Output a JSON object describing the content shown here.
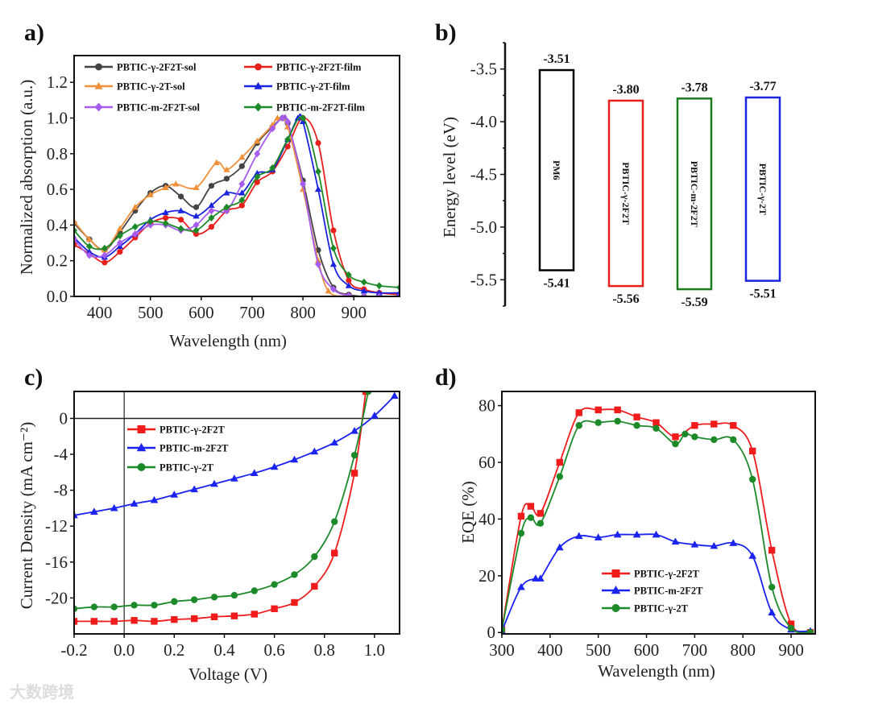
{
  "watermark": "大数跨境",
  "chart_data": [
    {
      "panel": "a)",
      "type": "line",
      "xlabel": "Wavelength (nm)",
      "ylabel": "Normalized absorption (a.u.)",
      "xlim": [
        350,
        990
      ],
      "ylim": [
        0,
        1.35
      ],
      "xticks": [
        {
          "v": 400,
          "t": "400"
        },
        {
          "v": 500,
          "t": "500"
        },
        {
          "v": 600,
          "t": "600"
        },
        {
          "v": 700,
          "t": "700"
        },
        {
          "v": 800,
          "t": "800"
        },
        {
          "v": 900,
          "t": "900"
        }
      ],
      "yticks": [
        {
          "v": 0,
          "t": "0.0"
        },
        {
          "v": 0.2,
          "t": "0.2"
        },
        {
          "v": 0.4,
          "t": "0.4"
        },
        {
          "v": 0.6,
          "t": "0.6"
        },
        {
          "v": 0.8,
          "t": "0.8"
        },
        {
          "v": 1.0,
          "t": "1.0"
        },
        {
          "v": 1.2,
          "t": "1.2"
        }
      ],
      "legend": "top-left, two columns",
      "series": [
        {
          "name": "PBTIC-γ-2F2T-sol",
          "color": "#444444",
          "marker": "circle",
          "x": [
            350,
            380,
            410,
            440,
            470,
            500,
            530,
            560,
            590,
            620,
            650,
            680,
            710,
            740,
            760,
            770,
            800,
            830,
            860,
            890,
            920,
            950,
            990
          ],
          "y": [
            0.41,
            0.32,
            0.26,
            0.36,
            0.48,
            0.58,
            0.62,
            0.56,
            0.5,
            0.62,
            0.66,
            0.73,
            0.86,
            0.95,
            1.0,
            0.97,
            0.65,
            0.26,
            0.05,
            0.01,
            0,
            0,
            0
          ]
        },
        {
          "name": "PBTIC-γ-2F2T-film",
          "color": "#e8201c",
          "marker": "circle",
          "x": [
            350,
            380,
            410,
            440,
            470,
            500,
            530,
            560,
            590,
            620,
            650,
            680,
            710,
            740,
            770,
            800,
            830,
            860,
            890,
            920,
            950,
            990
          ],
          "y": [
            0.29,
            0.24,
            0.19,
            0.25,
            0.33,
            0.41,
            0.44,
            0.43,
            0.35,
            0.39,
            0.48,
            0.51,
            0.64,
            0.7,
            0.84,
            1.0,
            0.86,
            0.37,
            0.09,
            0.04,
            0.02,
            0.01
          ]
        },
        {
          "name": "PBTIC-γ-2T-sol",
          "color": "#f0913a",
          "marker": "triangle",
          "x": [
            350,
            380,
            410,
            440,
            470,
            500,
            530,
            550,
            590,
            630,
            650,
            680,
            710,
            740,
            750,
            770,
            800,
            830,
            850,
            880,
            920,
            990
          ],
          "y": [
            0.42,
            0.32,
            0.26,
            0.38,
            0.5,
            0.57,
            0.61,
            0.63,
            0.61,
            0.75,
            0.71,
            0.78,
            0.87,
            0.96,
            1.0,
            0.95,
            0.6,
            0.2,
            0.03,
            0,
            0,
            0
          ]
        },
        {
          "name": "PBTIC-γ-2T-film",
          "color": "#1a23e0",
          "marker": "triangle",
          "x": [
            350,
            380,
            410,
            440,
            470,
            500,
            530,
            560,
            590,
            620,
            650,
            680,
            710,
            740,
            770,
            790,
            800,
            830,
            860,
            890,
            920,
            950,
            990
          ],
          "y": [
            0.33,
            0.25,
            0.22,
            0.28,
            0.35,
            0.43,
            0.47,
            0.48,
            0.45,
            0.51,
            0.58,
            0.58,
            0.69,
            0.71,
            0.88,
            1.0,
            0.98,
            0.6,
            0.18,
            0.06,
            0.03,
            0.02,
            0.02
          ]
        },
        {
          "name": "PBTIC-m-2F2T-sol",
          "color": "#a65cf0",
          "marker": "diamond",
          "x": [
            350,
            380,
            410,
            440,
            470,
            500,
            530,
            560,
            590,
            620,
            650,
            680,
            710,
            740,
            760,
            770,
            800,
            830,
            860,
            890,
            920,
            950,
            990
          ],
          "y": [
            0.32,
            0.23,
            0.23,
            0.3,
            0.35,
            0.4,
            0.4,
            0.37,
            0.4,
            0.48,
            0.48,
            0.63,
            0.8,
            0.94,
            1.0,
            0.98,
            0.63,
            0.18,
            0.04,
            0.005,
            0,
            0,
            0
          ]
        },
        {
          "name": "PBTIC-m-2F2T-film",
          "color": "#1d8a2a",
          "marker": "diamond",
          "x": [
            350,
            380,
            410,
            440,
            470,
            500,
            530,
            560,
            590,
            620,
            650,
            680,
            710,
            740,
            770,
            800,
            830,
            860,
            890,
            920,
            950,
            990
          ],
          "y": [
            0.37,
            0.28,
            0.27,
            0.34,
            0.39,
            0.42,
            0.41,
            0.38,
            0.37,
            0.44,
            0.5,
            0.54,
            0.67,
            0.72,
            0.88,
            1.0,
            0.7,
            0.27,
            0.12,
            0.08,
            0.06,
            0.05
          ]
        }
      ]
    },
    {
      "panel": "b)",
      "type": "bar",
      "ylabel": "Energy level (eV)",
      "ylim": [
        -3.25,
        -5.75
      ],
      "yticks": [
        {
          "v": -3.5,
          "t": "-3.5"
        },
        {
          "v": -4.0,
          "t": "-4.0"
        },
        {
          "v": -4.5,
          "t": "-4.5"
        },
        {
          "v": -5.0,
          "t": "-5.0"
        },
        {
          "v": -5.5,
          "t": "-5.5"
        }
      ],
      "levels": [
        {
          "name": "PM6",
          "lumo": -3.51,
          "homo": -5.41,
          "lumo_label": "-3.51",
          "homo_label": "-5.41",
          "color": "#000000"
        },
        {
          "name": "PBTIC-γ-2F2T",
          "lumo": -3.8,
          "homo": -5.56,
          "lumo_label": "-3.80",
          "homo_label": "-5.56",
          "color": "#e8201c"
        },
        {
          "name": "PBTIC-m-2F2T",
          "lumo": -3.78,
          "homo": -5.59,
          "lumo_label": "-3.78",
          "homo_label": "-5.59",
          "color": "#1d7a1d"
        },
        {
          "name": "PBTIC-γ-2T",
          "lumo": -3.77,
          "homo": -5.51,
          "lumo_label": "-3.77",
          "homo_label": "-5.51",
          "color": "#1a23e0"
        }
      ]
    },
    {
      "panel": "c)",
      "type": "line",
      "xlabel": "Voltage (V)",
      "ylabel": "Current Density (mA cm⁻²)",
      "xlim": [
        -0.2,
        1.1
      ],
      "ylim": [
        -24,
        3
      ],
      "xticks": [
        {
          "v": -0.2,
          "t": "-0.2"
        },
        {
          "v": 0,
          "t": "0.0"
        },
        {
          "v": 0.2,
          "t": "0.2"
        },
        {
          "v": 0.4,
          "t": "0.4"
        },
        {
          "v": 0.6,
          "t": "0.6"
        },
        {
          "v": 0.8,
          "t": "0.8"
        },
        {
          "v": 1.0,
          "t": "1.0"
        }
      ],
      "yticks": [
        {
          "v": -20,
          "t": "-20"
        },
        {
          "v": -16,
          "t": "-16"
        },
        {
          "v": -12,
          "t": "-12"
        },
        {
          "v": -8,
          "t": "-8"
        },
        {
          "v": -4,
          "t": "-4"
        },
        {
          "v": 0,
          "t": "0"
        }
      ],
      "legend": "upper-left",
      "series": [
        {
          "name": "PBTIC-γ-2F2T",
          "color": "#f01c1c",
          "marker": "square",
          "x": [
            -0.2,
            -0.12,
            -0.04,
            0.04,
            0.12,
            0.2,
            0.28,
            0.36,
            0.44,
            0.52,
            0.6,
            0.68,
            0.76,
            0.84,
            0.92,
            0.965
          ],
          "y": [
            -22.6,
            -22.6,
            -22.6,
            -22.5,
            -22.6,
            -22.4,
            -22.3,
            -22.1,
            -22.0,
            -21.8,
            -21.2,
            -20.5,
            -18.7,
            -15.0,
            -6.1,
            3
          ]
        },
        {
          "name": "PBTIC-m-2F2T",
          "color": "#1a23f0",
          "marker": "triangle",
          "x": [
            -0.2,
            -0.12,
            -0.04,
            0.04,
            0.12,
            0.2,
            0.28,
            0.36,
            0.44,
            0.52,
            0.6,
            0.68,
            0.76,
            0.84,
            0.92,
            1.0,
            1.08
          ],
          "y": [
            -10.8,
            -10.4,
            -10.0,
            -9.5,
            -9.1,
            -8.5,
            -7.9,
            -7.3,
            -6.7,
            -6.1,
            -5.4,
            -4.6,
            -3.7,
            -2.7,
            -1.4,
            0.3,
            2.5
          ]
        },
        {
          "name": "PBTIC-γ-2T",
          "color": "#1d8a2a",
          "marker": "circle",
          "x": [
            -0.2,
            -0.12,
            -0.04,
            0.04,
            0.12,
            0.2,
            0.28,
            0.36,
            0.44,
            0.52,
            0.6,
            0.68,
            0.76,
            0.84,
            0.92,
            0.975
          ],
          "y": [
            -21.2,
            -21.0,
            -21.0,
            -20.8,
            -20.8,
            -20.4,
            -20.2,
            -19.9,
            -19.7,
            -19.2,
            -18.5,
            -17.4,
            -15.4,
            -11.5,
            -4.1,
            3
          ]
        }
      ]
    },
    {
      "panel": "d)",
      "type": "line",
      "xlabel": "Wavelength (nm)",
      "ylabel": "EQE (%)",
      "xlim": [
        300,
        950
      ],
      "ylim": [
        -0.5,
        85
      ],
      "xticks": [
        {
          "v": 300,
          "t": "300"
        },
        {
          "v": 400,
          "t": "400"
        },
        {
          "v": 500,
          "t": "500"
        },
        {
          "v": 600,
          "t": "600"
        },
        {
          "v": 700,
          "t": "700"
        },
        {
          "v": 800,
          "t": "800"
        },
        {
          "v": 900,
          "t": "900"
        }
      ],
      "yticks": [
        {
          "v": 0,
          "t": "0"
        },
        {
          "v": 20,
          "t": "20"
        },
        {
          "v": 40,
          "t": "40"
        },
        {
          "v": 60,
          "t": "60"
        },
        {
          "v": 80,
          "t": "80"
        }
      ],
      "legend": "lower-center",
      "series": [
        {
          "name": "PBTIC-γ-2F2T",
          "color": "#f01c1c",
          "marker": "square",
          "x": [
            300,
            340,
            360,
            380,
            420,
            460,
            500,
            540,
            580,
            620,
            660,
            700,
            740,
            780,
            820,
            860,
            900,
            940
          ],
          "y": [
            1,
            41,
            44.5,
            42,
            60,
            77.5,
            78.5,
            78.5,
            76,
            74,
            69,
            73,
            73.5,
            73,
            64,
            29,
            3,
            0
          ]
        },
        {
          "name": "PBTIC-m-2F2T",
          "color": "#1a23f0",
          "marker": "triangle",
          "x": [
            300,
            340,
            370,
            380,
            420,
            460,
            500,
            540,
            580,
            620,
            660,
            700,
            740,
            780,
            820,
            860,
            900,
            940
          ],
          "y": [
            0.5,
            16,
            19,
            19,
            30,
            34,
            33.5,
            34.5,
            34.5,
            34.5,
            32,
            31,
            30.5,
            31.5,
            27,
            7,
            1,
            0.5
          ]
        },
        {
          "name": "PBTIC-γ-2T",
          "color": "#1d8a2a",
          "marker": "circle",
          "x": [
            300,
            340,
            360,
            380,
            420,
            460,
            500,
            540,
            580,
            620,
            660,
            680,
            700,
            740,
            780,
            820,
            860,
            900,
            940
          ],
          "y": [
            1,
            35,
            40.5,
            38.5,
            55,
            73,
            74,
            74.5,
            73,
            72,
            66.5,
            70,
            69,
            68,
            68,
            54,
            16,
            1.5,
            0
          ]
        }
      ]
    }
  ]
}
